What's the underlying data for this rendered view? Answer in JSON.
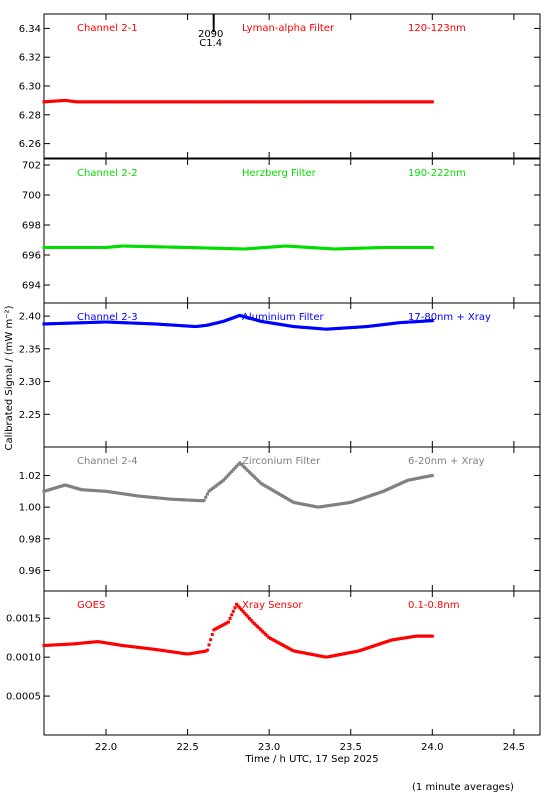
{
  "x_axis": {
    "label": "Time / h UTC, 17 Sep 2025",
    "ticks": [
      "22.0",
      "22.5",
      "23.0",
      "23.5",
      "24.0",
      "24.5"
    ],
    "tick_values": [
      22.0,
      22.5,
      23.0,
      23.5,
      24.0,
      24.5
    ],
    "range": [
      21.62,
      24.66
    ]
  },
  "y_axis_title": "Calibrated Signal / (mW m⁻²)",
  "footer_note": "(1 minute averages)",
  "event_marker": {
    "line1": "2090",
    "line2": "C1.4",
    "x": 22.66
  },
  "chart_data": [
    {
      "type": "scatter",
      "channel": "Channel 2-1",
      "filter": "Lyman-alpha Filter",
      "band": "120-123nm",
      "color": "#ff0000",
      "ylim": [
        6.25,
        6.35
      ],
      "y_ticks": [
        "6.26",
        "6.28",
        "6.30",
        "6.32",
        "6.34"
      ],
      "y_tick_values": [
        6.26,
        6.28,
        6.3,
        6.32,
        6.34
      ],
      "x_start": 21.62,
      "x_end": 24.0,
      "anchors": [
        [
          21.62,
          6.289
        ],
        [
          21.75,
          6.29
        ],
        [
          21.82,
          6.289
        ],
        [
          22.0,
          6.289
        ],
        [
          23.0,
          6.289
        ],
        [
          24.0,
          6.289
        ]
      ]
    },
    {
      "type": "scatter",
      "channel": "Channel 2-2",
      "filter": "Herzberg Filter",
      "band": "190-222nm",
      "color": "#00dd00",
      "ylim": [
        692.8,
        702.4
      ],
      "y_ticks": [
        "694",
        "696",
        "698",
        "700",
        "702"
      ],
      "y_tick_values": [
        694,
        696,
        698,
        700,
        702
      ],
      "x_start": 21.62,
      "x_end": 24.0,
      "anchors": [
        [
          21.62,
          696.5
        ],
        [
          22.0,
          696.5
        ],
        [
          22.1,
          696.6
        ],
        [
          22.5,
          696.5
        ],
        [
          22.85,
          696.4
        ],
        [
          23.1,
          696.6
        ],
        [
          23.4,
          696.4
        ],
        [
          23.7,
          696.5
        ],
        [
          24.0,
          696.5
        ]
      ]
    },
    {
      "type": "scatter",
      "channel": "Channel 2-3",
      "filter": "Aluminium Filter",
      "band": "17-80nm + Xray",
      "color": "#0000ff",
      "ylim": [
        2.2,
        2.42
      ],
      "y_ticks": [
        "2.25",
        "2.30",
        "2.35",
        "2.40"
      ],
      "y_tick_values": [
        2.25,
        2.3,
        2.35,
        2.4
      ],
      "x_start": 21.62,
      "x_end": 24.0,
      "anchors": [
        [
          21.62,
          2.388
        ],
        [
          22.0,
          2.391
        ],
        [
          22.3,
          2.388
        ],
        [
          22.55,
          2.384
        ],
        [
          22.62,
          2.386
        ],
        [
          22.72,
          2.392
        ],
        [
          22.82,
          2.401
        ],
        [
          22.95,
          2.392
        ],
        [
          23.15,
          2.384
        ],
        [
          23.35,
          2.38
        ],
        [
          23.6,
          2.384
        ],
        [
          23.8,
          2.39
        ],
        [
          24.0,
          2.393
        ]
      ]
    },
    {
      "type": "scatter",
      "channel": "Channel 2-4",
      "filter": "Zirconium Filter",
      "band": "6-20nm + Xray",
      "color": "#808080",
      "ylim": [
        0.947,
        1.038
      ],
      "y_ticks": [
        "0.96",
        "0.98",
        "1.00",
        "1.02"
      ],
      "y_tick_values": [
        0.96,
        0.98,
        1.0,
        1.02
      ],
      "x_start": 21.62,
      "x_end": 24.0,
      "anchors": [
        [
          21.62,
          1.01
        ],
        [
          21.75,
          1.014
        ],
        [
          21.85,
          1.011
        ],
        [
          22.0,
          1.01
        ],
        [
          22.2,
          1.007
        ],
        [
          22.4,
          1.005
        ],
        [
          22.6,
          1.004
        ],
        [
          22.63,
          1.01
        ],
        [
          22.72,
          1.017
        ],
        [
          22.82,
          1.028
        ],
        [
          22.95,
          1.015
        ],
        [
          23.15,
          1.003
        ],
        [
          23.3,
          1.0
        ],
        [
          23.5,
          1.003
        ],
        [
          23.7,
          1.01
        ],
        [
          23.85,
          1.017
        ],
        [
          24.0,
          1.02
        ]
      ]
    },
    {
      "type": "scatter",
      "channel": "GOES",
      "filter": "Xray Sensor",
      "band": "0.1-0.8nm",
      "color": "#ff0000",
      "ylim": [
        0.0,
        0.00185
      ],
      "y_ticks": [
        "0.0005",
        "0.0010",
        "0.0015"
      ],
      "y_tick_values": [
        0.0005,
        0.001,
        0.0015
      ],
      "x_start": 21.62,
      "x_end": 24.0,
      "anchors": [
        [
          21.62,
          0.00115
        ],
        [
          21.8,
          0.00117
        ],
        [
          21.95,
          0.0012
        ],
        [
          22.1,
          0.00115
        ],
        [
          22.3,
          0.0011
        ],
        [
          22.5,
          0.00104
        ],
        [
          22.62,
          0.00108
        ],
        [
          22.66,
          0.00135
        ],
        [
          22.75,
          0.00145
        ],
        [
          22.8,
          0.00168
        ],
        [
          22.9,
          0.00145
        ],
        [
          23.0,
          0.00125
        ],
        [
          23.15,
          0.00108
        ],
        [
          23.35,
          0.001
        ],
        [
          23.55,
          0.00108
        ],
        [
          23.75,
          0.00122
        ],
        [
          23.9,
          0.00127
        ],
        [
          24.0,
          0.00127
        ]
      ]
    }
  ]
}
